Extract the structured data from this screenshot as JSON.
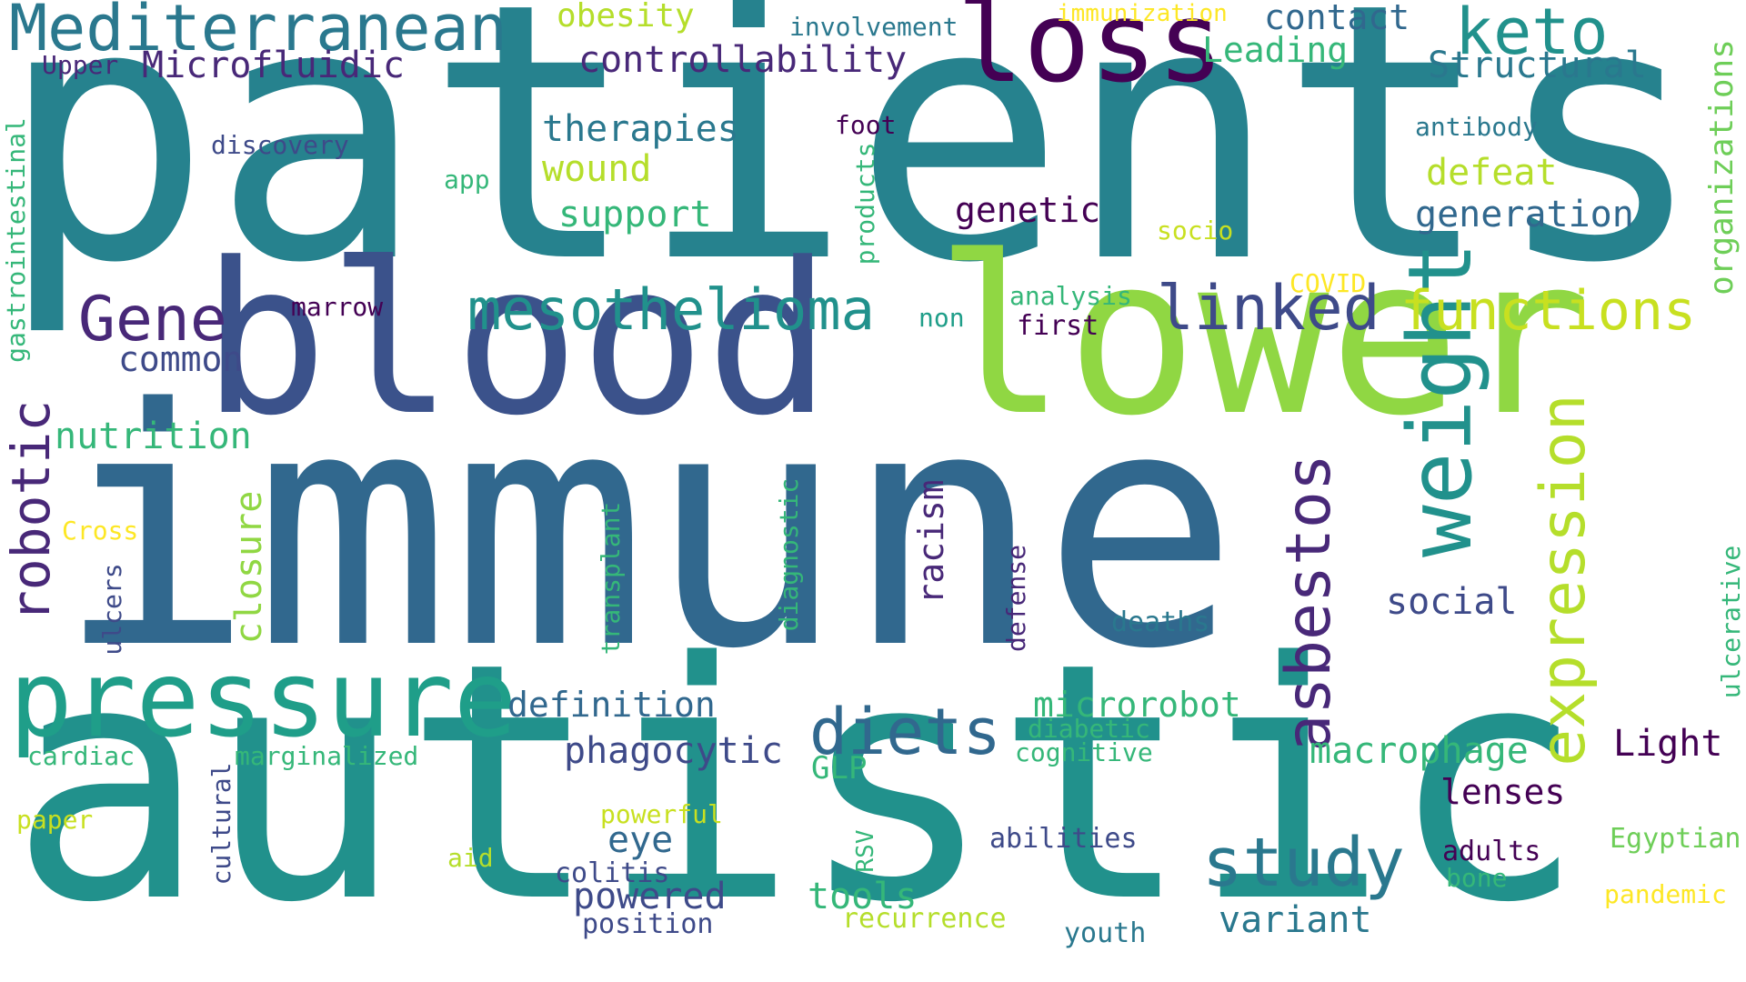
{
  "palette": {
    "navy": "#3b528b",
    "dark_purple": "#440154",
    "purple": "#482878",
    "slate_blue": "#3e4a89",
    "steel_blue": "#31688e",
    "teal_blue": "#26828e",
    "teal": "#21918c",
    "green_teal": "#1f9e89",
    "green": "#35b779",
    "light_green": "#6ece58",
    "lime": "#90d743",
    "yellow_green": "#b5de2b",
    "yellow": "#fde725"
  },
  "words": [
    {
      "text": "patients",
      "color": "#26828e",
      "vertical": false
    },
    {
      "text": "immune",
      "color": "#31688e",
      "vertical": false
    },
    {
      "text": "autistic",
      "color": "#21918c",
      "vertical": false
    },
    {
      "text": "blood",
      "color": "#3b528b",
      "vertical": false
    },
    {
      "text": "lower",
      "color": "#90d743",
      "vertical": false
    },
    {
      "text": "pressure",
      "color": "#1f9e89",
      "vertical": false
    },
    {
      "text": "loss",
      "color": "#440154",
      "vertical": false
    },
    {
      "text": "Mediterranean",
      "color": "#2a788e",
      "vertical": false
    },
    {
      "text": "keto",
      "color": "#21918c",
      "vertical": false
    },
    {
      "text": "weight",
      "color": "#21918c",
      "vertical": true
    },
    {
      "text": "expression",
      "color": "#b5de2b",
      "vertical": true
    },
    {
      "text": "asbestos",
      "color": "#482878",
      "vertical": true
    },
    {
      "text": "robotic",
      "color": "#482878",
      "vertical": true
    },
    {
      "text": "study",
      "color": "#2a788e",
      "vertical": false
    },
    {
      "text": "diets",
      "color": "#31688e",
      "vertical": false
    },
    {
      "text": "mesothelioma",
      "color": "#21918c",
      "vertical": false
    },
    {
      "text": "linked",
      "color": "#3e4a89",
      "vertical": false
    },
    {
      "text": "functions",
      "color": "#c8e020",
      "vertical": false
    },
    {
      "text": "Gene",
      "color": "#482878",
      "vertical": false
    },
    {
      "text": "nutrition",
      "color": "#35b779",
      "vertical": false
    },
    {
      "text": "common",
      "color": "#3e4a89",
      "vertical": false
    },
    {
      "text": "closure",
      "color": "#90d743",
      "vertical": true
    },
    {
      "text": "therapies",
      "color": "#2a788e",
      "vertical": false
    },
    {
      "text": "wound",
      "color": "#b5de2b",
      "vertical": false
    },
    {
      "text": "support",
      "color": "#35b779",
      "vertical": false
    },
    {
      "text": "genetic",
      "color": "#440154",
      "vertical": false
    },
    {
      "text": "controllability",
      "color": "#482878",
      "vertical": false
    },
    {
      "text": "Microfluidic",
      "color": "#482878",
      "vertical": false
    },
    {
      "text": "obesity",
      "color": "#b5de2b",
      "vertical": false
    },
    {
      "text": "involvement",
      "color": "#2a788e",
      "vertical": false
    },
    {
      "text": "immunization",
      "color": "#fde725",
      "vertical": false
    },
    {
      "text": "contact",
      "color": "#31688e",
      "vertical": false
    },
    {
      "text": "Leading",
      "color": "#35b779",
      "vertical": false
    },
    {
      "text": "Structural",
      "color": "#2a788e",
      "vertical": false
    },
    {
      "text": "organizations",
      "color": "#6ece58",
      "vertical": true
    },
    {
      "text": "antibody",
      "color": "#2a788e",
      "vertical": false
    },
    {
      "text": "defeat",
      "color": "#b5de2b",
      "vertical": false
    },
    {
      "text": "generation",
      "color": "#31688e",
      "vertical": false
    },
    {
      "text": "socio",
      "color": "#c8e020",
      "vertical": false
    },
    {
      "text": "COVID",
      "color": "#fde725",
      "vertical": false
    },
    {
      "text": "analysis",
      "color": "#35b779",
      "vertical": false
    },
    {
      "text": "first",
      "color": "#440154",
      "vertical": false
    },
    {
      "text": "non",
      "color": "#1f9e89",
      "vertical": false
    },
    {
      "text": "marrow",
      "color": "#440154",
      "vertical": false
    },
    {
      "text": "foot",
      "color": "#440154",
      "vertical": false
    },
    {
      "text": "products",
      "color": "#35b779",
      "vertical": true
    },
    {
      "text": "app",
      "color": "#35b779",
      "vertical": false
    },
    {
      "text": "discovery",
      "color": "#3e4a89",
      "vertical": false
    },
    {
      "text": "Upper",
      "color": "#482878",
      "vertical": false
    },
    {
      "text": "gastrointestinal",
      "color": "#35b779",
      "vertical": true
    },
    {
      "text": "Cross",
      "color": "#fde725",
      "vertical": false
    },
    {
      "text": "ulcers",
      "color": "#3e4a89",
      "vertical": true
    },
    {
      "text": "transplant",
      "color": "#35b779",
      "vertical": true
    },
    {
      "text": "diagnostic",
      "color": "#35b779",
      "vertical": true
    },
    {
      "text": "racism",
      "color": "#482878",
      "vertical": true
    },
    {
      "text": "defense",
      "color": "#482878",
      "vertical": true
    },
    {
      "text": "deaths",
      "color": "#2a788e",
      "vertical": false
    },
    {
      "text": "social",
      "color": "#3e4a89",
      "vertical": false
    },
    {
      "text": "ulcerative",
      "color": "#35b779",
      "vertical": true
    },
    {
      "text": "definition",
      "color": "#31688e",
      "vertical": false
    },
    {
      "text": "microrobot",
      "color": "#35b779",
      "vertical": false
    },
    {
      "text": "diabetic",
      "color": "#35b779",
      "vertical": false
    },
    {
      "text": "cognitive",
      "color": "#35b779",
      "vertical": false
    },
    {
      "text": "macrophage",
      "color": "#35b779",
      "vertical": false
    },
    {
      "text": "phagocytic",
      "color": "#3e4a89",
      "vertical": false
    },
    {
      "text": "GLP",
      "color": "#35b779",
      "vertical": false
    },
    {
      "text": "Light",
      "color": "#440154",
      "vertical": false
    },
    {
      "text": "lenses",
      "color": "#440154",
      "vertical": false
    },
    {
      "text": "cardiac",
      "color": "#35b779",
      "vertical": false
    },
    {
      "text": "marginalized",
      "color": "#35b779",
      "vertical": false
    },
    {
      "text": "cultural",
      "color": "#3e4a89",
      "vertical": true
    },
    {
      "text": "paper",
      "color": "#c8e020",
      "vertical": false
    },
    {
      "text": "powerful",
      "color": "#c8e020",
      "vertical": false
    },
    {
      "text": "eye",
      "color": "#31688e",
      "vertical": false
    },
    {
      "text": "aid",
      "color": "#b5de2b",
      "vertical": false
    },
    {
      "text": "colitis",
      "color": "#3e4a89",
      "vertical": false
    },
    {
      "text": "powered",
      "color": "#3e4a89",
      "vertical": false
    },
    {
      "text": "position",
      "color": "#3e4a89",
      "vertical": false
    },
    {
      "text": "RSV",
      "color": "#35b779",
      "vertical": true
    },
    {
      "text": "tools",
      "color": "#35b779",
      "vertical": false
    },
    {
      "text": "recurrence",
      "color": "#b5de2b",
      "vertical": false
    },
    {
      "text": "abilities",
      "color": "#3e4a89",
      "vertical": false
    },
    {
      "text": "youth",
      "color": "#2a788e",
      "vertical": false
    },
    {
      "text": "variant",
      "color": "#2a788e",
      "vertical": false
    },
    {
      "text": "adults",
      "color": "#440154",
      "vertical": false
    },
    {
      "text": "bone",
      "color": "#35b779",
      "vertical": false
    },
    {
      "text": "Egyptian",
      "color": "#6ece58",
      "vertical": false
    },
    {
      "text": "pandemic",
      "color": "#fde725",
      "vertical": false
    }
  ]
}
